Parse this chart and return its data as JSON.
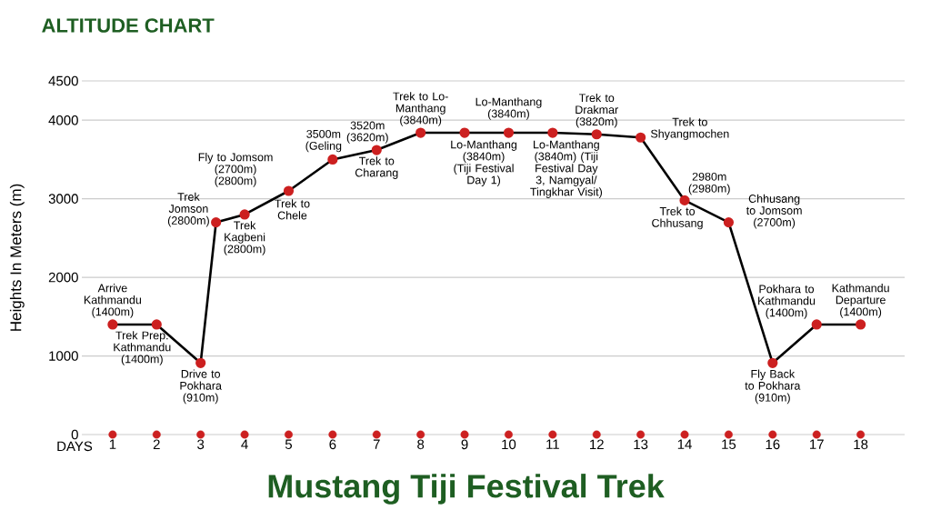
{
  "chart_data": {
    "type": "line",
    "title": "Mustang Tiji Festival Trek",
    "subtitle": "ALTITUDE CHART",
    "xlabel": "DAYS",
    "ylabel": "Heights In Meters (m)",
    "xlim": [
      0.3,
      19
    ],
    "ylim": [
      0,
      4500
    ],
    "xticks": [
      1,
      2,
      3,
      4,
      5,
      6,
      7,
      8,
      9,
      10,
      11,
      12,
      13,
      14,
      15,
      16,
      17,
      18
    ],
    "yticks": [
      0,
      1000,
      2000,
      3000,
      4000,
      4500
    ],
    "grid": "y",
    "marker": "circle",
    "series": [
      {
        "color": "#cc2020",
        "x": [
          1,
          2,
          3,
          3.35,
          4,
          5,
          6,
          7,
          8,
          9,
          10,
          11,
          12,
          13,
          14,
          15,
          16,
          17,
          18
        ],
        "values": [
          1400,
          1400,
          910,
          2700,
          2800,
          3100,
          3500,
          3620,
          3840,
          3840,
          3840,
          3840,
          3820,
          3780,
          2980,
          2700,
          910,
          1400,
          1400
        ]
      },
      {
        "type": "scatter",
        "color": "#cc2020",
        "x": [
          1,
          2,
          3,
          4,
          5,
          6,
          7,
          8,
          9,
          10,
          11,
          12,
          13,
          14,
          15,
          16,
          17,
          18
        ],
        "values": [
          0,
          0,
          0,
          0,
          0,
          0,
          0,
          0,
          0,
          0,
          0,
          0,
          0,
          0,
          0,
          0,
          0,
          0
        ]
      }
    ],
    "annotations": [
      {
        "text": "Arrive Kathmandu (1400m)",
        "x": 1,
        "y": 1400
      },
      {
        "text": "Trek Prep. Kathmandu (1400m)",
        "x": 2,
        "y": 1400
      },
      {
        "text": "Drive to Pokhara (910m)",
        "x": 3,
        "y": 910
      },
      {
        "text": "Trek Jomson (2800m)",
        "x": 3.35,
        "y": 2700
      },
      {
        "text": "Fly to Jomsom (2700m) (2800m)",
        "x": 4,
        "y": 2800
      },
      {
        "text": "Trek Kagbeni (2800m)",
        "x": 4,
        "y": 2800
      },
      {
        "text": "Trek to Chele",
        "x": 5,
        "y": 3100
      },
      {
        "text": "3500m (Geling",
        "x": 6,
        "y": 3500
      },
      {
        "text": "3520m (3620m)",
        "x": 7,
        "y": 3620
      },
      {
        "text": "Trek to Charang",
        "x": 7,
        "y": 3620
      },
      {
        "text": "Trek to Lo-Manthang (3840m)",
        "x": 8,
        "y": 3840
      },
      {
        "text": "Lo-Manthang (3840m)",
        "x": 10,
        "y": 3840
      },
      {
        "text": "Lo-Manthang (3840m) (Tiji Festival Day 1)",
        "x": 9,
        "y": 3840
      },
      {
        "text": "Lo-Manthang (3840m) (Tiji Festival Day 3, Namgyal/ Tingkhar Visit)",
        "x": 11,
        "y": 3840
      },
      {
        "text": "Trek to Drakmar (3820m)",
        "x": 12,
        "y": 3820
      },
      {
        "text": "Trek to Shyangmochen",
        "x": 13,
        "y": 3780
      },
      {
        "text": "2980m (2980m)",
        "x": 14,
        "y": 2980
      },
      {
        "text": "Trek to Chhusang",
        "x": 14,
        "y": 2980
      },
      {
        "text": "Chhusang to Jomsom (2700m)",
        "x": 15,
        "y": 2700
      },
      {
        "text": "Fly Back to Pokhara (910m)",
        "x": 16,
        "y": 910
      },
      {
        "text": "Pokhara to Kathmandu (1400m)",
        "x": 17,
        "y": 1400
      },
      {
        "text": "Kathmandu Departure (1400m)",
        "x": 18,
        "y": 1400
      }
    ]
  }
}
